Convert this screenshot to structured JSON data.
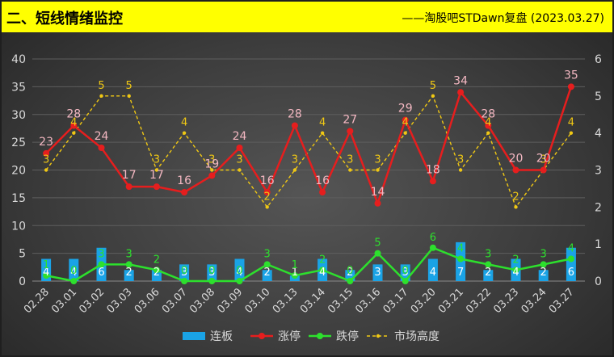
{
  "header": {
    "title": "二、短线情绪监控",
    "source": "——淘股吧STDawn复盘 (2023.03.27)"
  },
  "colors": {
    "bar": "#1aa3e6",
    "limit_up": "#e61e1e",
    "limit_down": "#2de02d",
    "market_height": "#f0c814",
    "limit_up_label": "#f4b8c2",
    "bar_label": "#ffffff",
    "axis_text": "#d9d9d9"
  },
  "chart_data": {
    "type": "bar+line",
    "categories": [
      "02.28",
      "03.01",
      "03.02",
      "03.03",
      "03.06",
      "03.07",
      "03.08",
      "03.09",
      "03.10",
      "03.13",
      "03.14",
      "03.15",
      "03.16",
      "03.17",
      "03.20",
      "03.21",
      "03.22",
      "03.23",
      "03.24",
      "03.27"
    ],
    "left_axis": {
      "min": 0,
      "max": 40,
      "ticks": [
        0,
        5,
        10,
        15,
        20,
        25,
        30,
        35,
        40
      ]
    },
    "right_axis": {
      "min": 0,
      "max": 6,
      "ticks": [
        0,
        1,
        2,
        3,
        4,
        5,
        6
      ]
    },
    "grid": true,
    "legend_position": "bottom",
    "series": [
      {
        "name": "连板",
        "type": "bar",
        "axis": "left",
        "values": [
          4,
          4,
          6,
          2,
          2,
          3,
          3,
          4,
          2,
          1,
          4,
          2,
          3,
          3,
          4,
          7,
          2,
          4,
          2,
          6
        ]
      },
      {
        "name": "涨停",
        "type": "line",
        "axis": "left",
        "values": [
          23,
          28,
          24,
          17,
          17,
          16,
          19,
          24,
          16,
          28,
          16,
          27,
          14,
          29,
          18,
          34,
          28,
          20,
          20,
          35
        ]
      },
      {
        "name": "跌停",
        "type": "line",
        "axis": "left",
        "values": [
          1,
          0,
          3,
          3,
          2,
          0,
          0,
          0,
          3,
          1,
          2,
          0,
          5,
          0,
          6,
          4,
          3,
          2,
          3,
          4
        ]
      },
      {
        "name": "市场高度",
        "type": "line",
        "axis": "right",
        "dashed": true,
        "values": [
          3,
          4,
          5,
          5,
          3,
          4,
          3,
          3,
          2,
          3,
          4,
          3,
          3,
          4,
          5,
          3,
          4,
          2,
          3,
          4
        ]
      }
    ]
  }
}
